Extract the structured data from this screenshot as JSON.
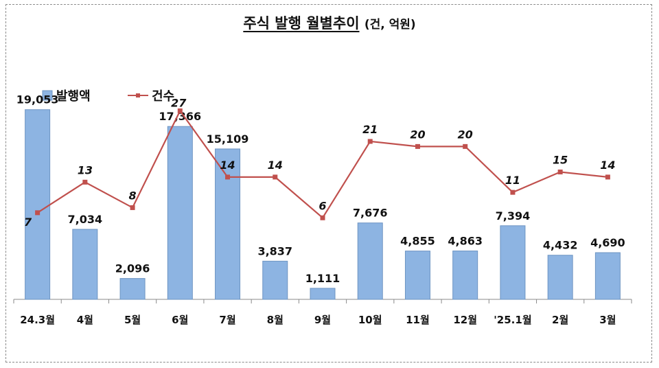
{
  "chart_data": {
    "type": "bar",
    "title": "주식 발행 월별추이",
    "unit": "(건, 억원)",
    "categories": [
      "24.3월",
      "4월",
      "5월",
      "6월",
      "7월",
      "8월",
      "9월",
      "10월",
      "11월",
      "12월",
      "'25.1월",
      "2월",
      "3월"
    ],
    "series": [
      {
        "name": "발행액",
        "type": "bar",
        "color": "#8db4e2",
        "values": [
          19053,
          7034,
          2096,
          17366,
          15109,
          3837,
          1111,
          7676,
          4855,
          4863,
          7394,
          4432,
          4690
        ]
      },
      {
        "name": "건수",
        "type": "line",
        "color": "#c0504d",
        "values": [
          7,
          13,
          8,
          27,
          14,
          14,
          6,
          21,
          20,
          20,
          11,
          15,
          14
        ]
      }
    ],
    "bar_labels": [
      "19,053",
      "7,034",
      "2,096",
      "17,366",
      "15,109",
      "3,837",
      "1,111",
      "7,676",
      "4,855",
      "4,863",
      "7,394",
      "4,432",
      "4,690"
    ],
    "line_labels": [
      "7",
      "13",
      "8",
      "27",
      "14",
      "14",
      "6",
      "21",
      "20",
      "20",
      "11",
      "15",
      "14"
    ],
    "bar_ylim": [
      0,
      40000
    ],
    "line_ylim": [
      -10,
      28
    ],
    "legend": "top-left",
    "grid": false
  }
}
